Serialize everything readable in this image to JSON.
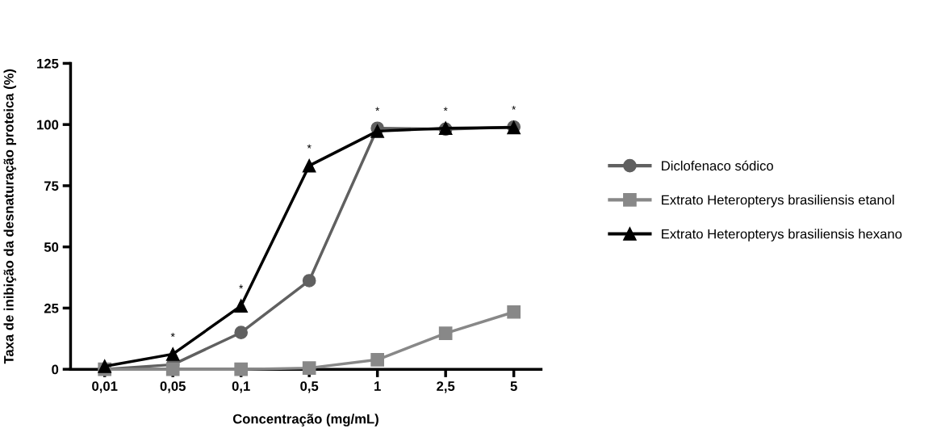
{
  "chart_data": {
    "type": "line",
    "xlabel": "Concentração (mg/mL)",
    "ylabel": "Taxa de inibição da desnaturação proteica (%)",
    "categories": [
      "0,01",
      "0,05",
      "0,1",
      "0,5",
      "1",
      "2,5",
      "5"
    ],
    "series": [
      {
        "name": "Diclofenaco sódico",
        "color": "#606060",
        "marker": "circle",
        "values": [
          0,
          1.9,
          15,
          36.2,
          98.5,
          98.1,
          99
        ]
      },
      {
        "name": "Extrato Heteropterys brasiliensis etanol",
        "color": "#888888",
        "marker": "square",
        "values": [
          0,
          0,
          0,
          0.5,
          3.9,
          14.7,
          23.4
        ]
      },
      {
        "name": "Extrato Heteropterys brasiliensis hexano",
        "color": "#000000",
        "marker": "triangle",
        "values": [
          1.2,
          6.2,
          25.9,
          83.2,
          97.3,
          98.5,
          98.8
        ]
      }
    ],
    "annotations": [
      {
        "text": "*",
        "x": "0,05",
        "y": 6.2
      },
      {
        "text": "*",
        "x": "0,1",
        "y": 25.9
      },
      {
        "text": "*",
        "x": "0,5",
        "y": 83.2
      },
      {
        "text": "*",
        "x": "1",
        "y": 98.5
      },
      {
        "text": "*",
        "x": "2,5",
        "y": 98.5
      },
      {
        "text": "*",
        "x": "5",
        "y": 99
      }
    ],
    "ylim": [
      0,
      125
    ],
    "yticks": [
      0,
      25,
      50,
      75,
      100,
      125
    ],
    "grid": false,
    "legend": "right",
    "line_style": "solid"
  }
}
